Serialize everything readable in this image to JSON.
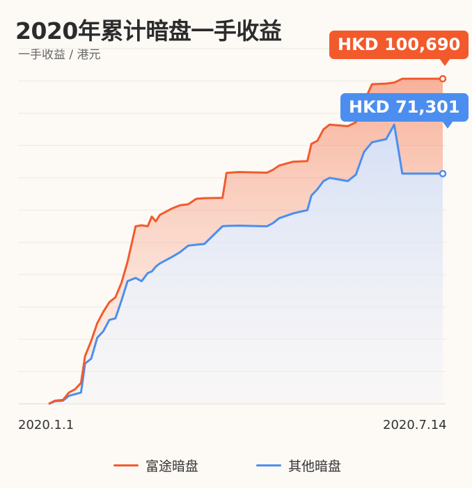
{
  "header": {
    "title": "2020年累计暗盘一手收益",
    "subtitle": "一手收益 / 港元"
  },
  "callouts": {
    "futu": "HKD 100,690",
    "others": "HKD 71,301"
  },
  "colors": {
    "futu": "#f25a2c",
    "others": "#4b8ef0",
    "grid": "#ece7e2",
    "background": "#fdf9f5"
  },
  "chart_data": {
    "type": "line",
    "title": "2020年累计暗盘一手收益",
    "subtitle": "一手收益 / 港元",
    "x_ticks": [
      "2020.1.1",
      "2020.7.14"
    ],
    "y_range": [
      0,
      110000
    ],
    "grid": true,
    "legend_position": "bottom",
    "series": [
      {
        "name": "富途暗盘",
        "final_value": 100690,
        "points": [
          [
            "2020.1.1",
            0
          ],
          [
            "2020.1.4",
            1000
          ],
          [
            "2020.1.8",
            1200
          ],
          [
            "2020.1.11",
            3500
          ],
          [
            "2020.1.14",
            4500
          ],
          [
            "2020.1.17",
            6500
          ],
          [
            "2020.1.19",
            14800
          ],
          [
            "2020.1.22",
            19500
          ],
          [
            "2020.1.25",
            25000
          ],
          [
            "2020.1.28",
            28500
          ],
          [
            "2020.1.31",
            31500
          ],
          [
            "2020.2.3",
            33000
          ],
          [
            "2020.2.6",
            37500
          ],
          [
            "2020.2.9",
            44000
          ],
          [
            "2020.2.13",
            55000
          ],
          [
            "2020.2.16",
            55300
          ],
          [
            "2020.2.19",
            55000
          ],
          [
            "2020.2.21",
            58000
          ],
          [
            "2020.2.23",
            56500
          ],
          [
            "2020.2.25",
            58500
          ],
          [
            "2020.2.28",
            59500
          ],
          [
            "2020.3.2",
            60500
          ],
          [
            "2020.3.6",
            61500
          ],
          [
            "2020.3.10",
            61800
          ],
          [
            "2020.3.14",
            63500
          ],
          [
            "2020.3.18",
            63700
          ],
          [
            "2020.3.27",
            63800
          ],
          [
            "2020.3.29",
            71500
          ],
          [
            "2020.4.4",
            71800
          ],
          [
            "2020.4.18",
            71600
          ],
          [
            "2020.4.21",
            72500
          ],
          [
            "2020.4.24",
            73800
          ],
          [
            "2020.5.1",
            75000
          ],
          [
            "2020.5.8",
            75200
          ],
          [
            "2020.5.10",
            80500
          ],
          [
            "2020.5.13",
            81500
          ],
          [
            "2020.5.16",
            85000
          ],
          [
            "2020.5.19",
            86500
          ],
          [
            "2020.5.28",
            86000
          ],
          [
            "2020.6.1",
            87200
          ],
          [
            "2020.6.5",
            93500
          ],
          [
            "2020.6.9",
            99000
          ],
          [
            "2020.6.16",
            99200
          ],
          [
            "2020.6.20",
            99500
          ],
          [
            "2020.6.24",
            100690
          ],
          [
            "2020.7.14",
            100690
          ]
        ]
      },
      {
        "name": "其他暗盘",
        "final_value": 71301,
        "points": [
          [
            "2020.1.1",
            0
          ],
          [
            "2020.1.4",
            800
          ],
          [
            "2020.1.8",
            1000
          ],
          [
            "2020.1.11",
            2500
          ],
          [
            "2020.1.14",
            3000
          ],
          [
            "2020.1.17",
            3500
          ],
          [
            "2020.1.19",
            12500
          ],
          [
            "2020.1.22",
            14000
          ],
          [
            "2020.1.25",
            20500
          ],
          [
            "2020.1.28",
            22500
          ],
          [
            "2020.1.31",
            26000
          ],
          [
            "2020.2.3",
            26500
          ],
          [
            "2020.2.6",
            32000
          ],
          [
            "2020.2.9",
            38000
          ],
          [
            "2020.2.13",
            39000
          ],
          [
            "2020.2.16",
            38000
          ],
          [
            "2020.2.19",
            40500
          ],
          [
            "2020.2.21",
            41000
          ],
          [
            "2020.2.23",
            42500
          ],
          [
            "2020.2.25",
            43500
          ],
          [
            "2020.2.28",
            44500
          ],
          [
            "2020.3.2",
            45500
          ],
          [
            "2020.3.6",
            47000
          ],
          [
            "2020.3.10",
            49000
          ],
          [
            "2020.3.14",
            49300
          ],
          [
            "2020.3.18",
            49500
          ],
          [
            "2020.3.27",
            55000
          ],
          [
            "2020.3.29",
            55100
          ],
          [
            "2020.4.4",
            55200
          ],
          [
            "2020.4.18",
            55000
          ],
          [
            "2020.4.21",
            56000
          ],
          [
            "2020.4.24",
            57500
          ],
          [
            "2020.5.1",
            59000
          ],
          [
            "2020.5.8",
            60000
          ],
          [
            "2020.5.10",
            64500
          ],
          [
            "2020.5.13",
            66500
          ],
          [
            "2020.5.16",
            69000
          ],
          [
            "2020.5.19",
            70000
          ],
          [
            "2020.5.28",
            69000
          ],
          [
            "2020.6.1",
            71000
          ],
          [
            "2020.6.5",
            78000
          ],
          [
            "2020.6.9",
            81000
          ],
          [
            "2020.6.16",
            82000
          ],
          [
            "2020.6.20",
            86500
          ],
          [
            "2020.6.24",
            71301
          ],
          [
            "2020.7.14",
            71301
          ]
        ]
      }
    ]
  },
  "legend": {
    "futu": "富途暗盘",
    "others": "其他暗盘"
  }
}
